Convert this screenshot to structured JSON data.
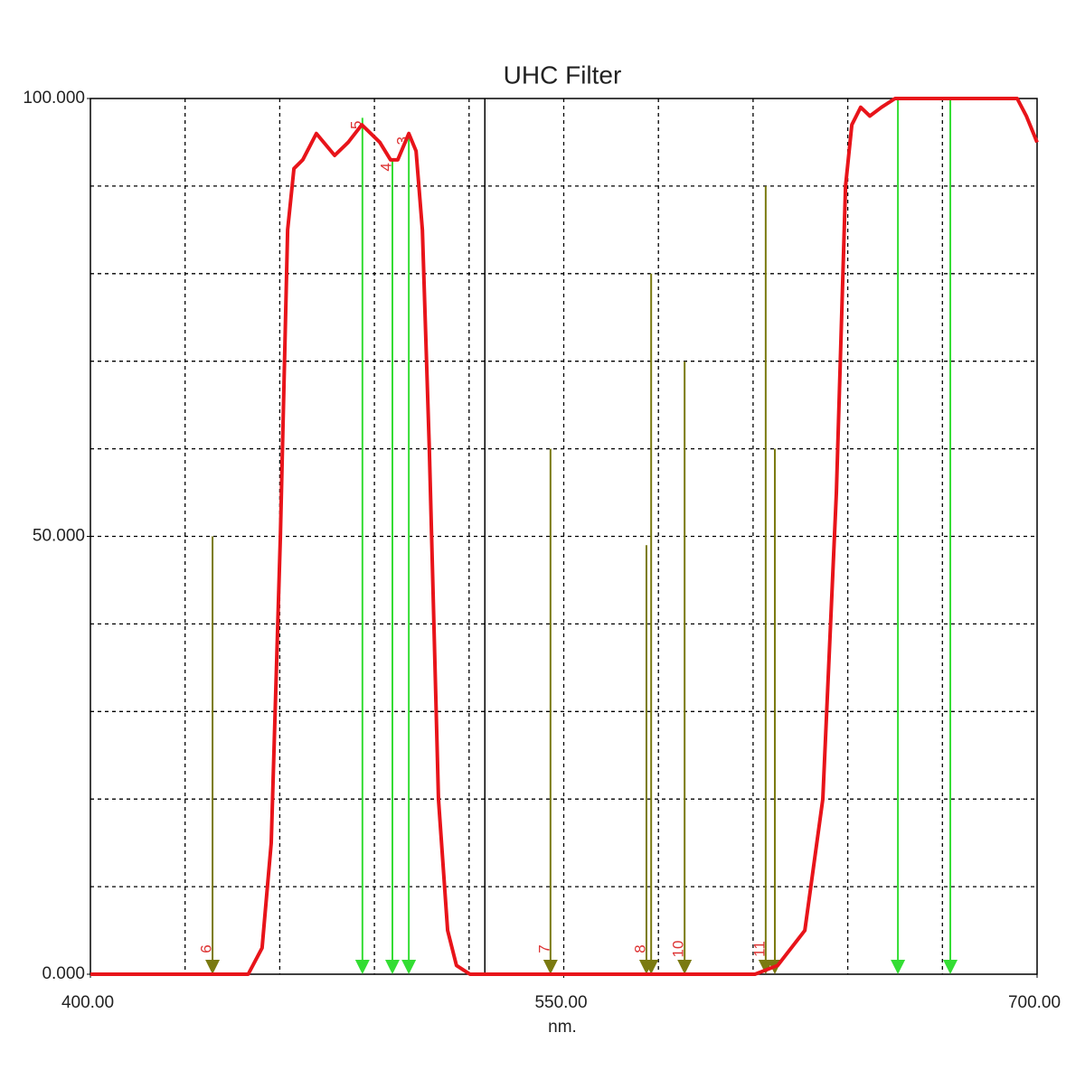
{
  "chart_data": {
    "type": "line",
    "title": "UHC Filter",
    "x_label": "nm.",
    "xlim": [
      400,
      700
    ],
    "xticks": [
      {
        "value": 400,
        "label": "400.00"
      },
      {
        "value": 550,
        "label": "550.00"
      },
      {
        "value": 700,
        "label": "700.00"
      }
    ],
    "xgrid": [
      430,
      460,
      490,
      520,
      550,
      580,
      610,
      640,
      670
    ],
    "ylim": [
      0,
      100
    ],
    "yticks": [
      {
        "value": 0,
        "label": "0.000"
      },
      {
        "value": 50,
        "label": "50.000"
      },
      {
        "value": 100,
        "label": "100.000"
      }
    ],
    "ygrid": [
      10,
      20,
      30,
      40,
      50,
      60,
      70,
      80,
      90
    ],
    "grid": true,
    "cursor_x": 525,
    "series": [
      {
        "color": "#e8141a",
        "x": [
          400,
          450,
          454.4,
          457.3,
          460.2,
          462.5,
          464.5,
          467.3,
          471.6,
          477.4,
          481.7,
          486,
          491.7,
          495.1,
          497.4,
          500.9,
          503.2,
          505.2,
          507.4,
          510.3,
          513.2,
          516,
          520.3,
          610.6,
          617.8,
          626.4,
          632.1,
          636.4,
          639.3,
          641.3,
          644.1,
          647,
          650.7,
          655,
          657.9,
          693.7,
          696.6,
          700
        ],
        "values": [
          0,
          0,
          3,
          15,
          50,
          85,
          92,
          93,
          96,
          93.5,
          95,
          97,
          95,
          93,
          93,
          96,
          94,
          85,
          60,
          20,
          5,
          1,
          0,
          0,
          1,
          5,
          20,
          55,
          90,
          97,
          99,
          98,
          99,
          100,
          100,
          100,
          98,
          95
        ]
      }
    ],
    "markers": [
      {
        "x": 438.7,
        "top": 50,
        "color": "#7a7a10",
        "label": "6"
      },
      {
        "x": 486.2,
        "top": 97.8,
        "color": "#33dd33",
        "label": "5"
      },
      {
        "x": 495.7,
        "top": 93,
        "color": "#33dd33",
        "label": "4"
      },
      {
        "x": 500.9,
        "top": 96,
        "color": "#33dd33",
        "label": "3"
      },
      {
        "x": 545.8,
        "top": 60,
        "color": "#7a7a10",
        "label": "7"
      },
      {
        "x": 576.2,
        "top": 49,
        "color": "#7a7a10",
        "label": "8"
      },
      {
        "x": 577.7,
        "top": 80,
        "color": "#7a7a10"
      },
      {
        "x": 588.3,
        "top": 70,
        "color": "#7a7a10",
        "label": "10"
      },
      {
        "x": 614,
        "top": 90,
        "color": "#7a7a10",
        "label": "11"
      },
      {
        "x": 616.9,
        "top": 60,
        "color": "#7a7a10"
      },
      {
        "x": 655.9,
        "top": 100,
        "color": "#33dd33"
      },
      {
        "x": 672.5,
        "top": 100,
        "color": "#33dd33"
      }
    ]
  }
}
